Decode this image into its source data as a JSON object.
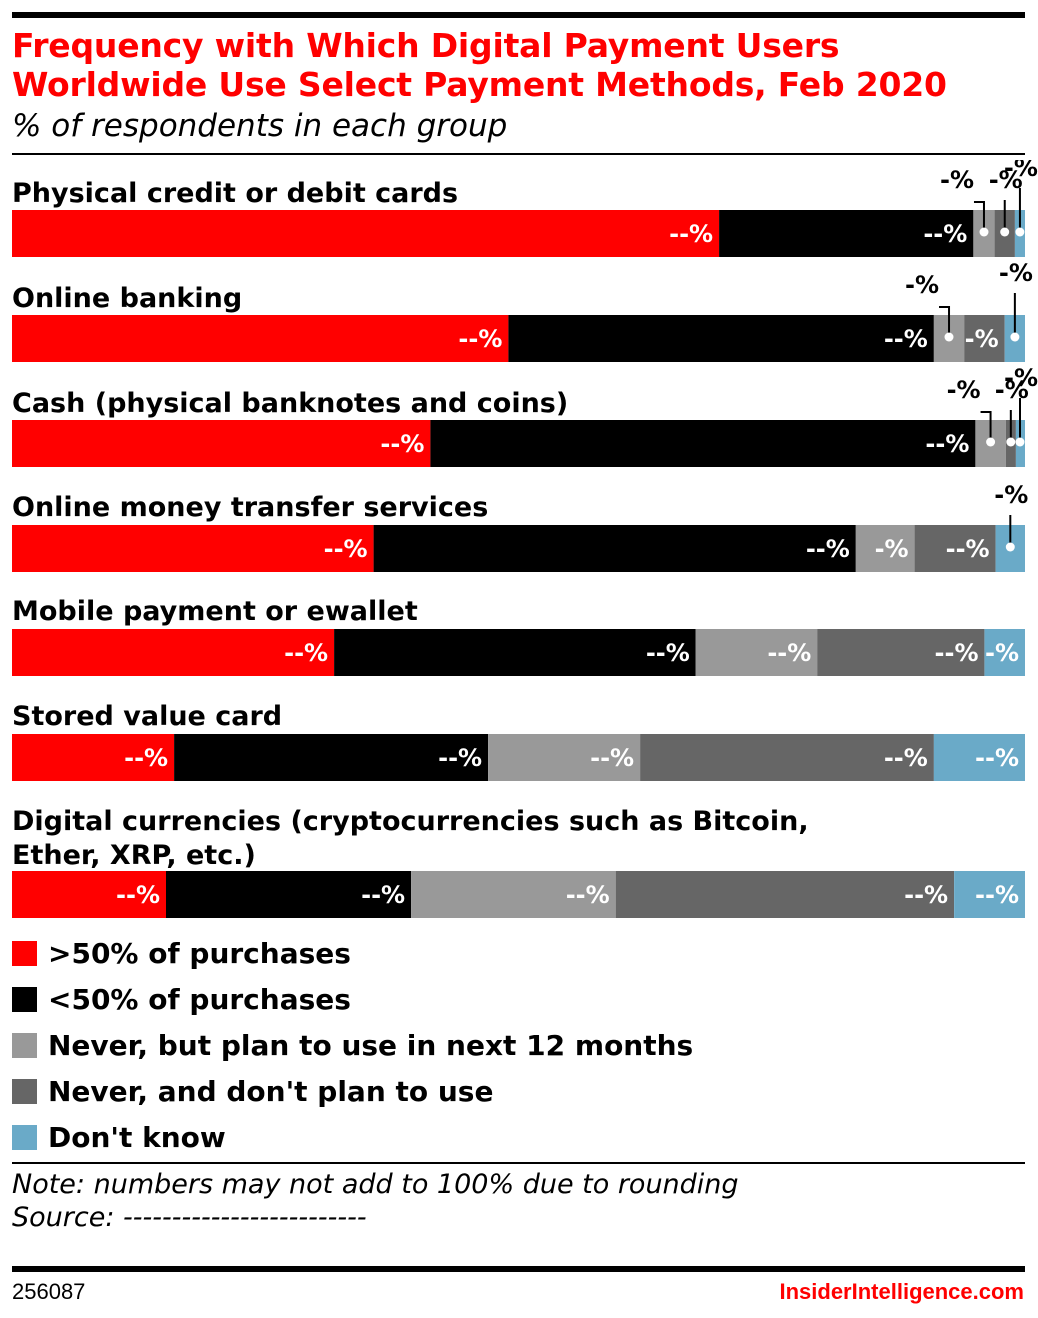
{
  "header": {
    "title": "Frequency with Which Digital Payment Users Worldwide Use Select Payment Methods, Feb 2020",
    "subtitle": "% of respondents in each group"
  },
  "colors": {
    "gt50": "#ff0000",
    "lt50": "#000000",
    "plan": "#999999",
    "noplan": "#666666",
    "dontknow": "#6aaac8",
    "title": "#ff0000"
  },
  "chart_data": {
    "type": "bar",
    "orientation": "horizontal",
    "stacked": true,
    "value_label": "--%",
    "small_value_label": "-%",
    "categories": [
      "Physical credit or debit cards",
      "Online banking",
      "Cash (physical banknotes and coins)",
      "Online money transfer services",
      "Mobile payment or ewallet",
      "Stored value card",
      "Digital currencies (cryptocurrencies such as Bitcoin, Ether, XRP, etc.)"
    ],
    "series": [
      {
        "name": ">50% of purchases",
        "color_key": "gt50",
        "values": [
          69.8,
          49.0,
          41.3,
          35.7,
          31.8,
          16.0,
          15.2
        ]
      },
      {
        "name": "<50% of purchases",
        "color_key": "lt50",
        "values": [
          25.1,
          42.0,
          53.8,
          47.6,
          35.7,
          31.0,
          24.2
        ]
      },
      {
        "name": "Never, but plan to use in next 12 months",
        "color_key": "plan",
        "values": [
          2.1,
          3.0,
          3.0,
          5.8,
          12.0,
          15.0,
          20.2
        ]
      },
      {
        "name": "Never, and don't plan to use",
        "color_key": "noplan",
        "values": [
          2.0,
          4.0,
          1.0,
          8.0,
          16.5,
          29.0,
          33.4
        ]
      },
      {
        "name": "Don't know",
        "color_key": "dontknow",
        "values": [
          1.0,
          2.0,
          0.9,
          2.9,
          4.0,
          9.0,
          7.0
        ]
      }
    ],
    "xlim": [
      0,
      100
    ],
    "legend_position": "bottom-left",
    "grid": false
  },
  "footer": {
    "note": "Note: numbers may not add to 100% due to rounding",
    "source": "Source: -------------------------",
    "chart_id": "256087",
    "brand": "InsiderIntelligence.com"
  }
}
